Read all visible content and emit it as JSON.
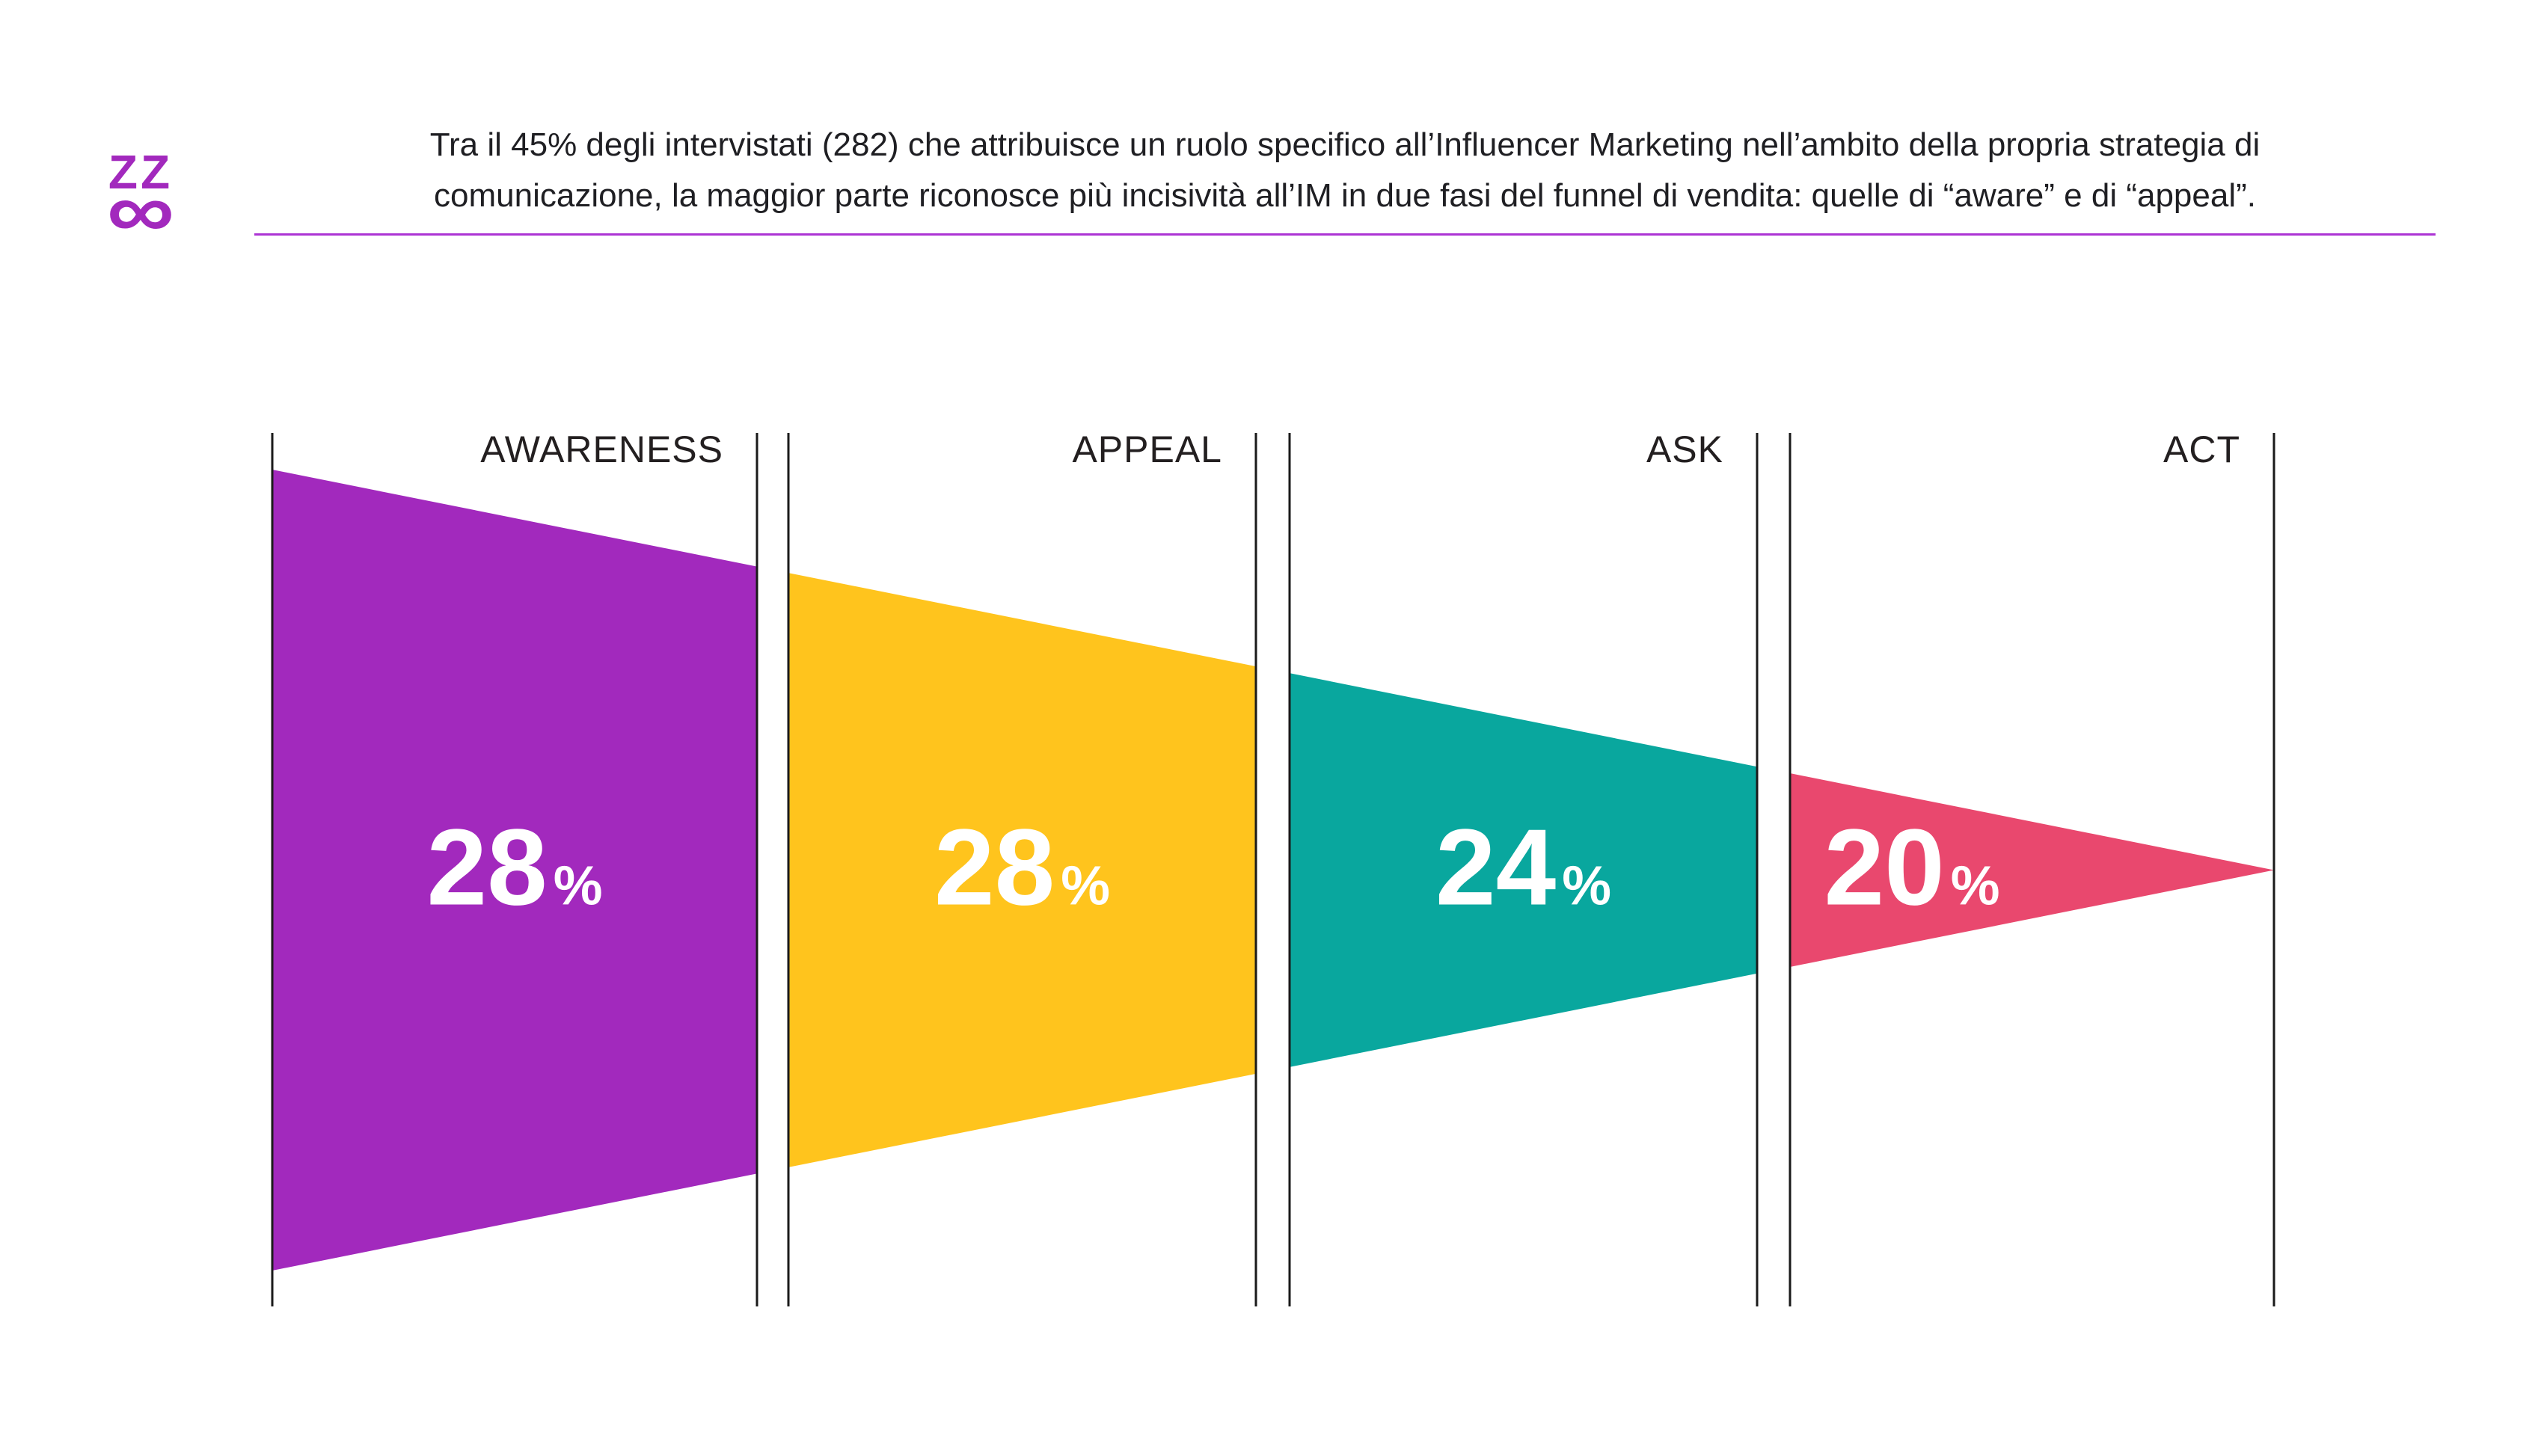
{
  "page": {
    "background": "#FFFFFF"
  },
  "logo": {
    "top": "ZZ",
    "bottom": "∞",
    "color": "#A229BD"
  },
  "header": {
    "lines": [
      "Tra il 45% degli intervistati (282) che attribuisce un ruolo specifico all’Influencer Marketing nell’ambito della propria strategia di",
      "comunicazione, la maggior parte riconosce più incisività all’IM in due fasi del funnel di vendita: quelle di “aware” e di “appeal”."
    ],
    "text_color": "#1F1F23",
    "underline_color": "#AC34D4"
  },
  "chart_data": {
    "type": "funnel",
    "title": "",
    "orientation": "horizontal-left-to-right",
    "stages": [
      {
        "label": "AWARENESS",
        "value": "28",
        "suffix": "%",
        "color": "#A229BD"
      },
      {
        "label": "APPEAL",
        "value": "28",
        "suffix": "%",
        "color": "#FFC41D"
      },
      {
        "label": "ASK",
        "value": "24",
        "suffix": "%",
        "color": "#09A79E"
      },
      {
        "label": "ACT",
        "value": "20",
        "suffix": "%",
        "color": "#E9486E"
      }
    ],
    "values_numeric": [
      28,
      28,
      24,
      20
    ],
    "value_unit": "%",
    "divider_line_color": "#1A1A1A",
    "stage_label_color": "#231F20",
    "value_text_color": "#FFFFFF"
  }
}
